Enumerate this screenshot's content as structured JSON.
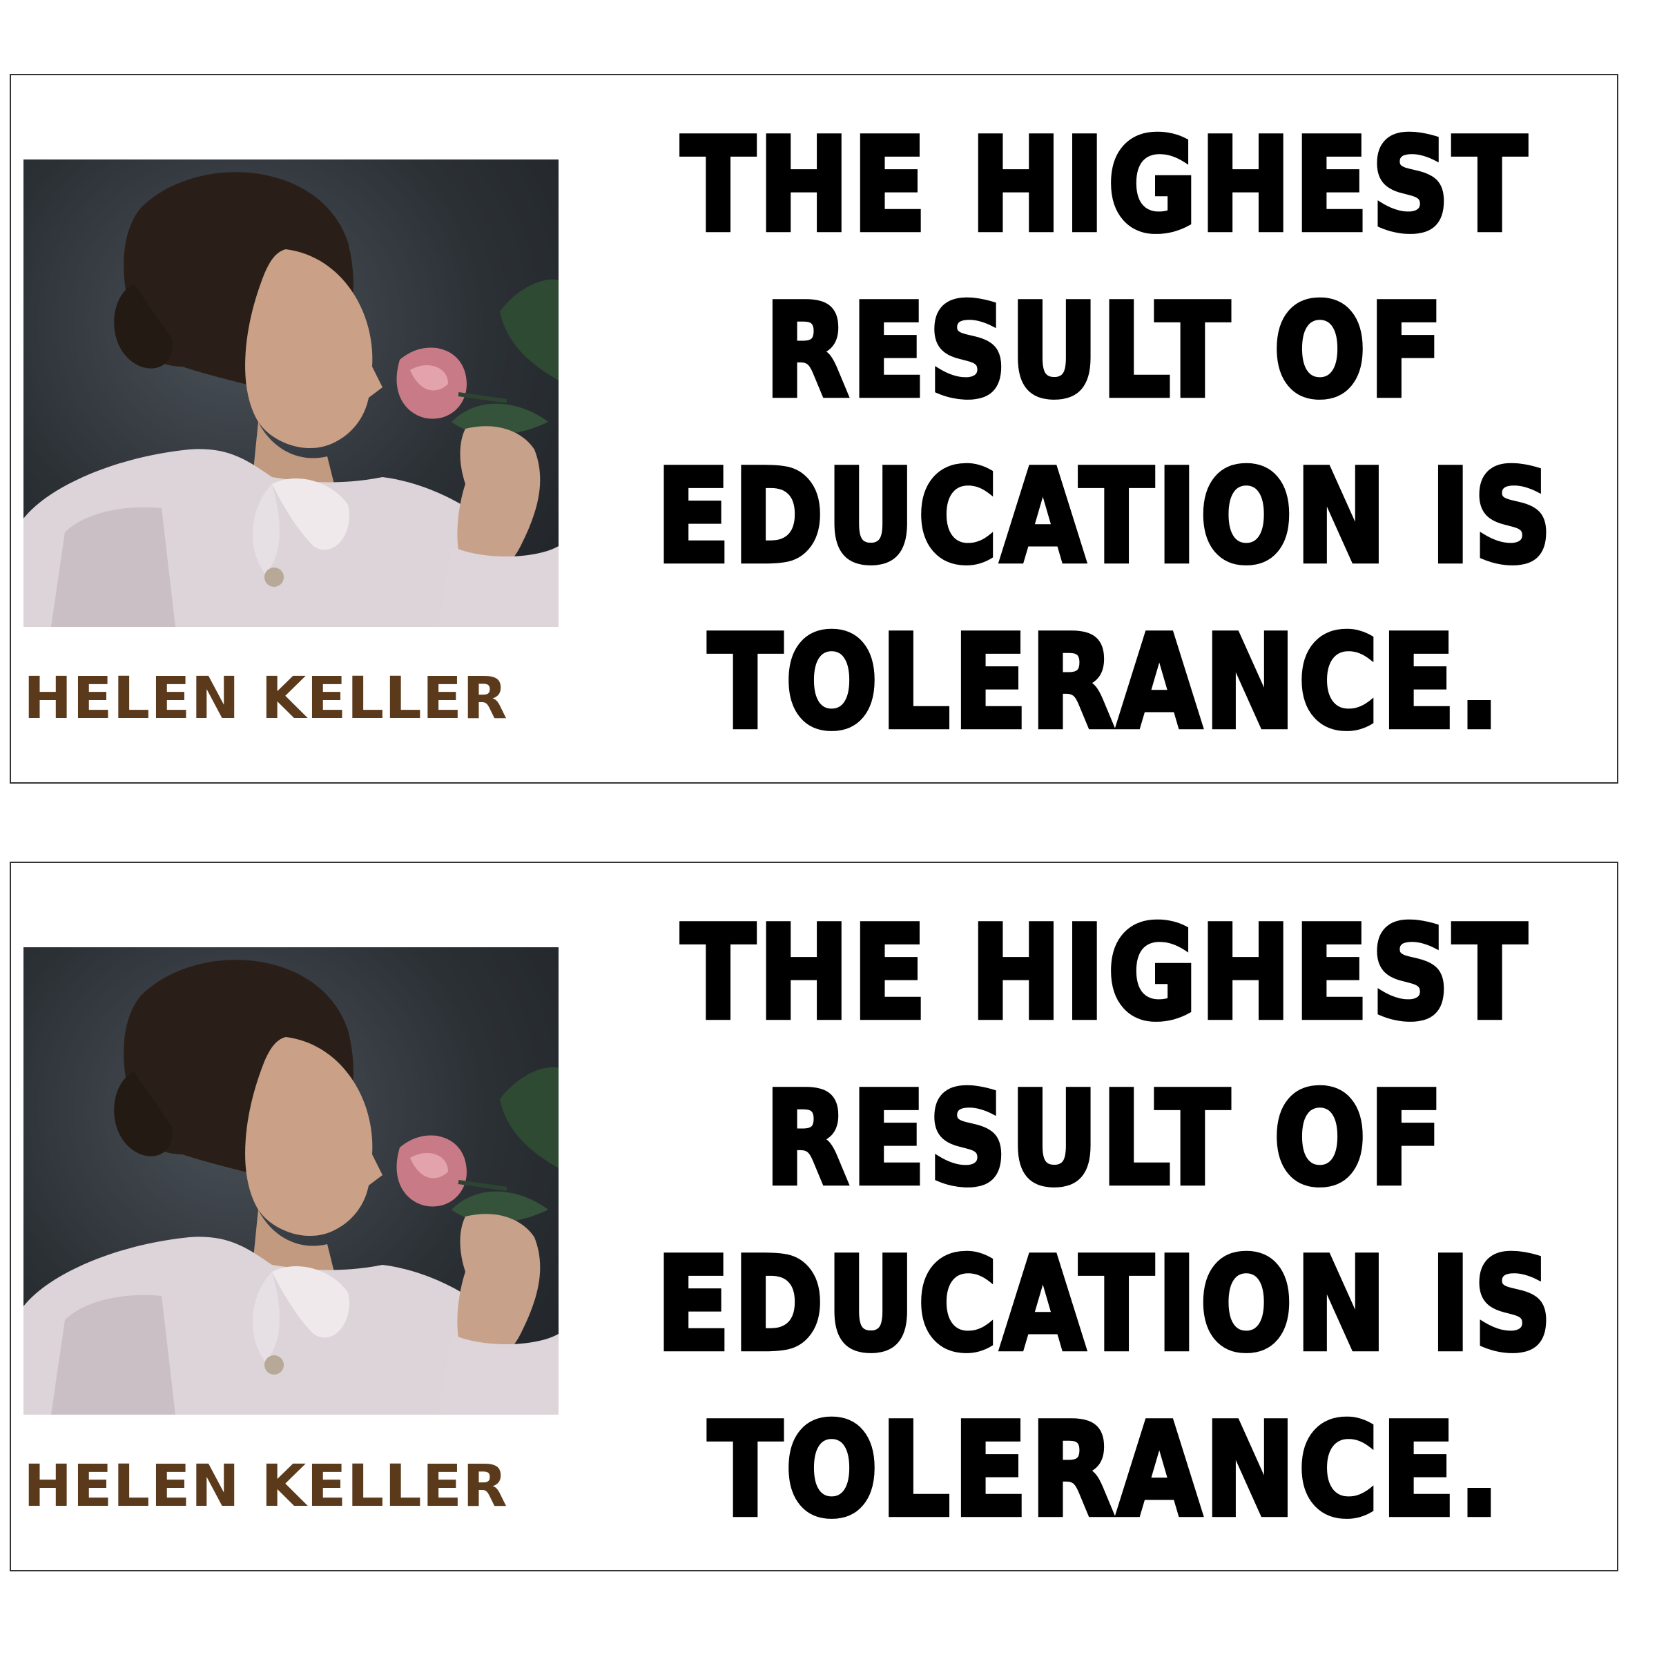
{
  "stickers": [
    {
      "author": "HELEN KELLER",
      "quote_lines": [
        "THE HIGHEST",
        "RESULT OF",
        "EDUCATION IS",
        "TOLERANCE."
      ]
    },
    {
      "author": "HELEN KELLER",
      "quote_lines": [
        "THE HIGHEST",
        "RESULT OF",
        "EDUCATION IS",
        "TOLERANCE."
      ]
    }
  ],
  "colors": {
    "author_text": "#5b3a1c",
    "quote_text": "#000000",
    "border": "#333333",
    "background": "#ffffff"
  }
}
